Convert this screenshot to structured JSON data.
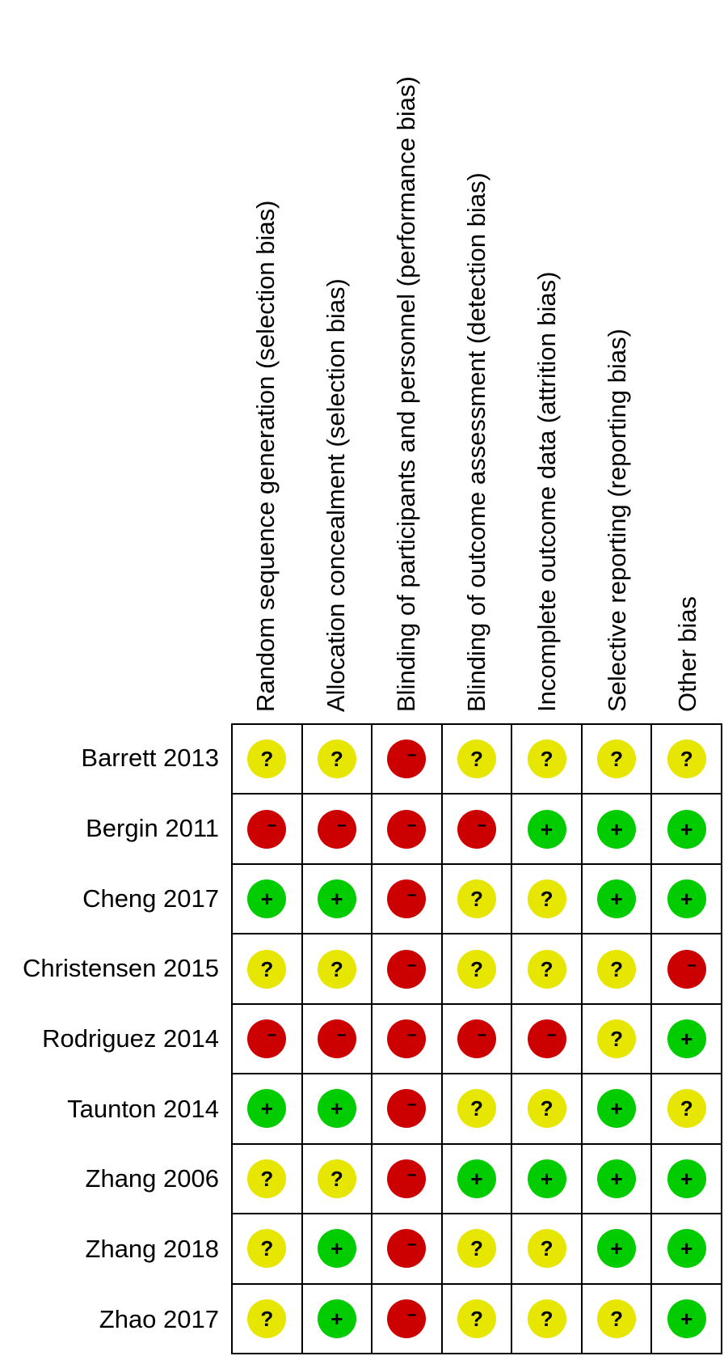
{
  "domains": [
    "Random sequence generation (selection bias)",
    "Allocation concealment (selection bias)",
    "Blinding of participants and personnel (performance bias)",
    "Blinding of outcome assessment (detection bias)",
    "Incomplete outcome data (attrition bias)",
    "Selective reporting (reporting bias)",
    "Other bias"
  ],
  "studies": [
    {
      "name": "Barrett 2013",
      "ratings": [
        "unclear",
        "unclear",
        "high",
        "unclear",
        "unclear",
        "unclear",
        "unclear"
      ]
    },
    {
      "name": "Bergin 2011",
      "ratings": [
        "high",
        "high",
        "high",
        "high",
        "low",
        "low",
        "low"
      ]
    },
    {
      "name": "Cheng 2017",
      "ratings": [
        "low",
        "low",
        "high",
        "unclear",
        "unclear",
        "low",
        "low"
      ]
    },
    {
      "name": "Christensen 2015",
      "ratings": [
        "unclear",
        "unclear",
        "high",
        "unclear",
        "unclear",
        "unclear",
        "high"
      ]
    },
    {
      "name": "Rodriguez 2014",
      "ratings": [
        "high",
        "high",
        "high",
        "high",
        "high",
        "unclear",
        "low"
      ]
    },
    {
      "name": "Taunton 2014",
      "ratings": [
        "low",
        "low",
        "high",
        "unclear",
        "unclear",
        "low",
        "unclear"
      ]
    },
    {
      "name": "Zhang 2006",
      "ratings": [
        "unclear",
        "unclear",
        "high",
        "low",
        "low",
        "low",
        "low"
      ]
    },
    {
      "name": "Zhang 2018",
      "ratings": [
        "unclear",
        "low",
        "high",
        "unclear",
        "unclear",
        "low",
        "low"
      ]
    },
    {
      "name": "Zhao 2017",
      "ratings": [
        "unclear",
        "low",
        "high",
        "unclear",
        "unclear",
        "unclear",
        "low"
      ]
    }
  ],
  "symbols": {
    "low": "+",
    "unclear": "?",
    "high": "−"
  },
  "colors": {
    "low": "#00cc00",
    "unclear": "#e6e600",
    "high": "#cc0000"
  }
}
